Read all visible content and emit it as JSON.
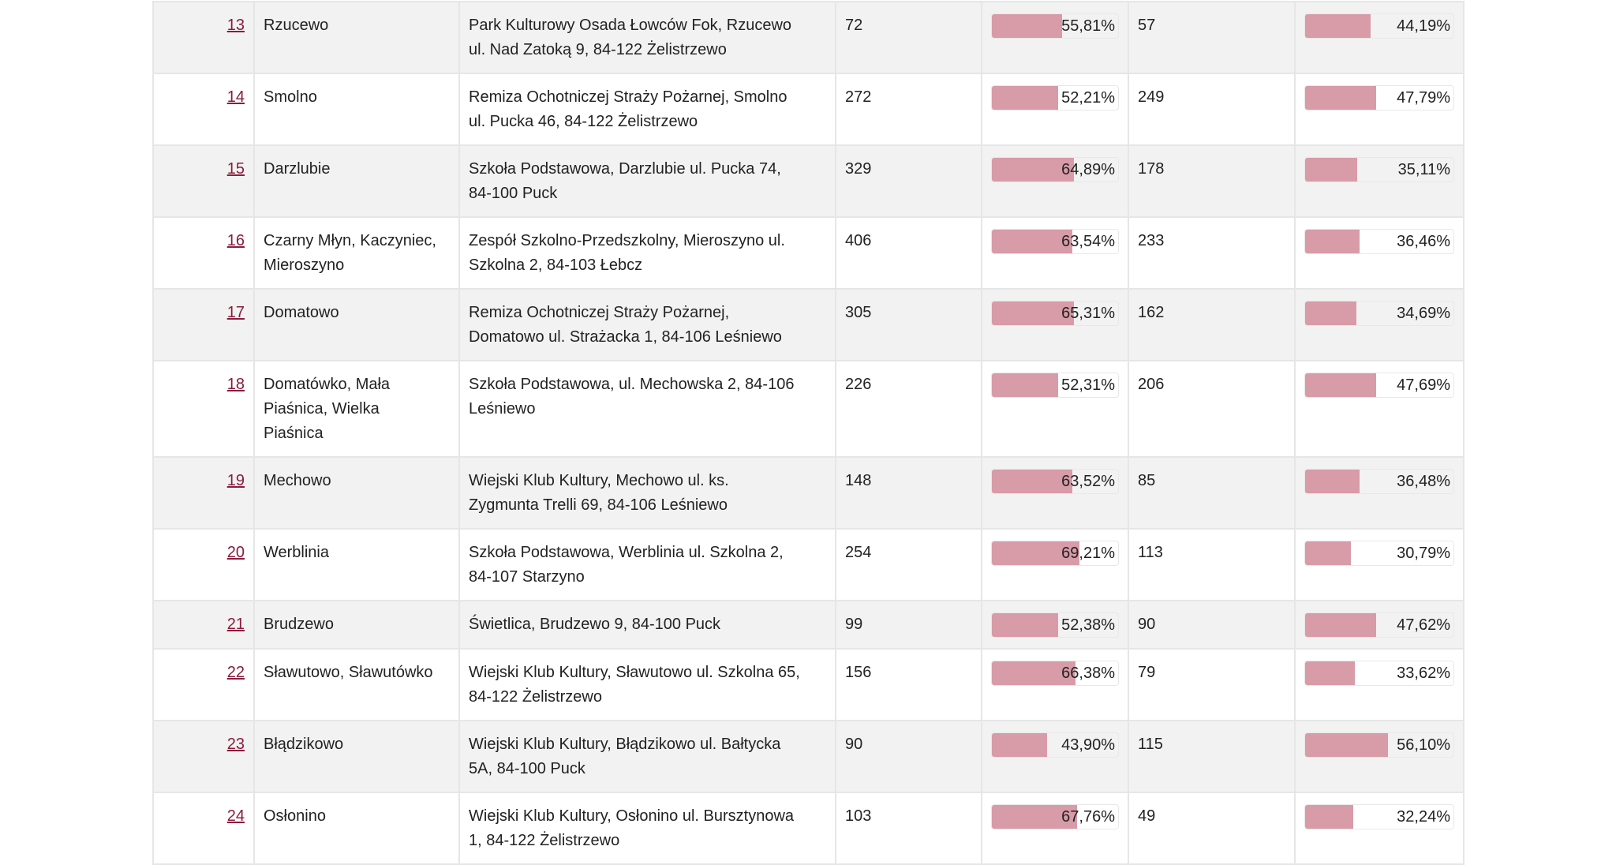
{
  "colors": {
    "bar": "#d89ba8",
    "link": "#8b1c3c",
    "stripe": "#f2f2f2"
  },
  "rows": [
    {
      "no": "13",
      "locality": [
        "Rzucewo"
      ],
      "address": [
        "Park Kulturowy Osada Łowców Fok, Rzucewo",
        "ul. Nad Zatoką 9, 84-122 Żelistrzewo"
      ],
      "count_a": "72",
      "pct_a": "55,81%",
      "count_b": "57",
      "pct_b": "44,19%",
      "frac_a": 55.81,
      "frac_b": 44.19
    },
    {
      "no": "14",
      "locality": [
        "Smolno"
      ],
      "address": [
        "Remiza Ochotniczej Straży Pożarnej, Smolno",
        "ul. Pucka 46, 84-122 Żelistrzewo"
      ],
      "count_a": "272",
      "pct_a": "52,21%",
      "count_b": "249",
      "pct_b": "47,79%",
      "frac_a": 52.21,
      "frac_b": 47.79
    },
    {
      "no": "15",
      "locality": [
        "Darzlubie"
      ],
      "address": [
        "Szkoła Podstawowa, Darzlubie ul. Pucka 74,",
        "84-100 Puck"
      ],
      "count_a": "329",
      "pct_a": "64,89%",
      "count_b": "178",
      "pct_b": "35,11%",
      "frac_a": 64.89,
      "frac_b": 35.11
    },
    {
      "no": "16",
      "locality": [
        "Czarny Młyn, Kaczyniec,",
        "Mieroszyno"
      ],
      "address": [
        "Zespół Szkolno-Przedszkolny, Mieroszyno ul.",
        "Szkolna 2, 84-103 Łebcz"
      ],
      "count_a": "406",
      "pct_a": "63,54%",
      "count_b": "233",
      "pct_b": "36,46%",
      "frac_a": 63.54,
      "frac_b": 36.46
    },
    {
      "no": "17",
      "locality": [
        "Domatowo"
      ],
      "address": [
        "Remiza Ochotniczej Straży Pożarnej,",
        "Domatowo ul. Strażacka 1, 84-106 Leśniewo"
      ],
      "count_a": "305",
      "pct_a": "65,31%",
      "count_b": "162",
      "pct_b": "34,69%",
      "frac_a": 65.31,
      "frac_b": 34.69
    },
    {
      "no": "18",
      "locality": [
        "Domatówko, Mała",
        "Piaśnica, Wielka",
        "Piaśnica"
      ],
      "address": [
        "Szkoła Podstawowa, ul. Mechowska 2, 84-106",
        "Leśniewo"
      ],
      "count_a": "226",
      "pct_a": "52,31%",
      "count_b": "206",
      "pct_b": "47,69%",
      "frac_a": 52.31,
      "frac_b": 47.69
    },
    {
      "no": "19",
      "locality": [
        "Mechowo"
      ],
      "address": [
        "Wiejski Klub Kultury, Mechowo ul. ks.",
        "Zygmunta Trelli 69, 84-106 Leśniewo"
      ],
      "count_a": "148",
      "pct_a": "63,52%",
      "count_b": "85",
      "pct_b": "36,48%",
      "frac_a": 63.52,
      "frac_b": 36.48
    },
    {
      "no": "20",
      "locality": [
        "Werblinia"
      ],
      "address": [
        "Szkoła Podstawowa, Werblinia ul. Szkolna 2,",
        "84-107 Starzyno"
      ],
      "count_a": "254",
      "pct_a": "69,21%",
      "count_b": "113",
      "pct_b": "30,79%",
      "frac_a": 69.21,
      "frac_b": 30.79
    },
    {
      "no": "21",
      "locality": [
        "Brudzewo"
      ],
      "address": [
        "Świetlica, Brudzewo 9, 84-100 Puck"
      ],
      "count_a": "99",
      "pct_a": "52,38%",
      "count_b": "90",
      "pct_b": "47,62%",
      "frac_a": 52.38,
      "frac_b": 47.62
    },
    {
      "no": "22",
      "locality": [
        "Sławutowo, Sławutówko"
      ],
      "address": [
        "Wiejski Klub Kultury, Sławutowo ul. Szkolna 65,",
        "84-122 Żelistrzewo"
      ],
      "count_a": "156",
      "pct_a": "66,38%",
      "count_b": "79",
      "pct_b": "33,62%",
      "frac_a": 66.38,
      "frac_b": 33.62
    },
    {
      "no": "23",
      "locality": [
        "Błądzikowo"
      ],
      "address": [
        "Wiejski Klub Kultury, Błądzikowo ul. Bałtycka",
        "5A, 84-100 Puck"
      ],
      "count_a": "90",
      "pct_a": "43,90%",
      "count_b": "115",
      "pct_b": "56,10%",
      "frac_a": 43.9,
      "frac_b": 56.1
    },
    {
      "no": "24",
      "locality": [
        "Osłonino"
      ],
      "address": [
        "Wiejski Klub Kultury, Osłonino ul. Bursztynowa",
        "1, 84-122 Żelistrzewo"
      ],
      "count_a": "103",
      "pct_a": "67,76%",
      "count_b": "49",
      "pct_b": "32,24%",
      "frac_a": 67.76,
      "frac_b": 32.24
    }
  ]
}
